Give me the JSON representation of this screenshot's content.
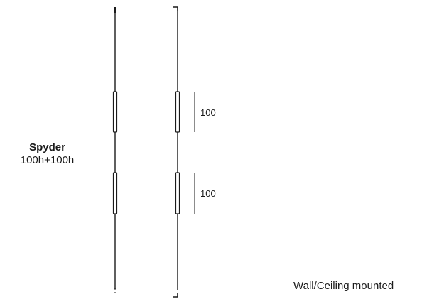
{
  "product": {
    "name": "Spyder",
    "variant": "100h+100h"
  },
  "mounting": "Wall/Ceiling mounted",
  "dimensions": {
    "upper_segment": "100",
    "lower_segment": "100"
  }
}
